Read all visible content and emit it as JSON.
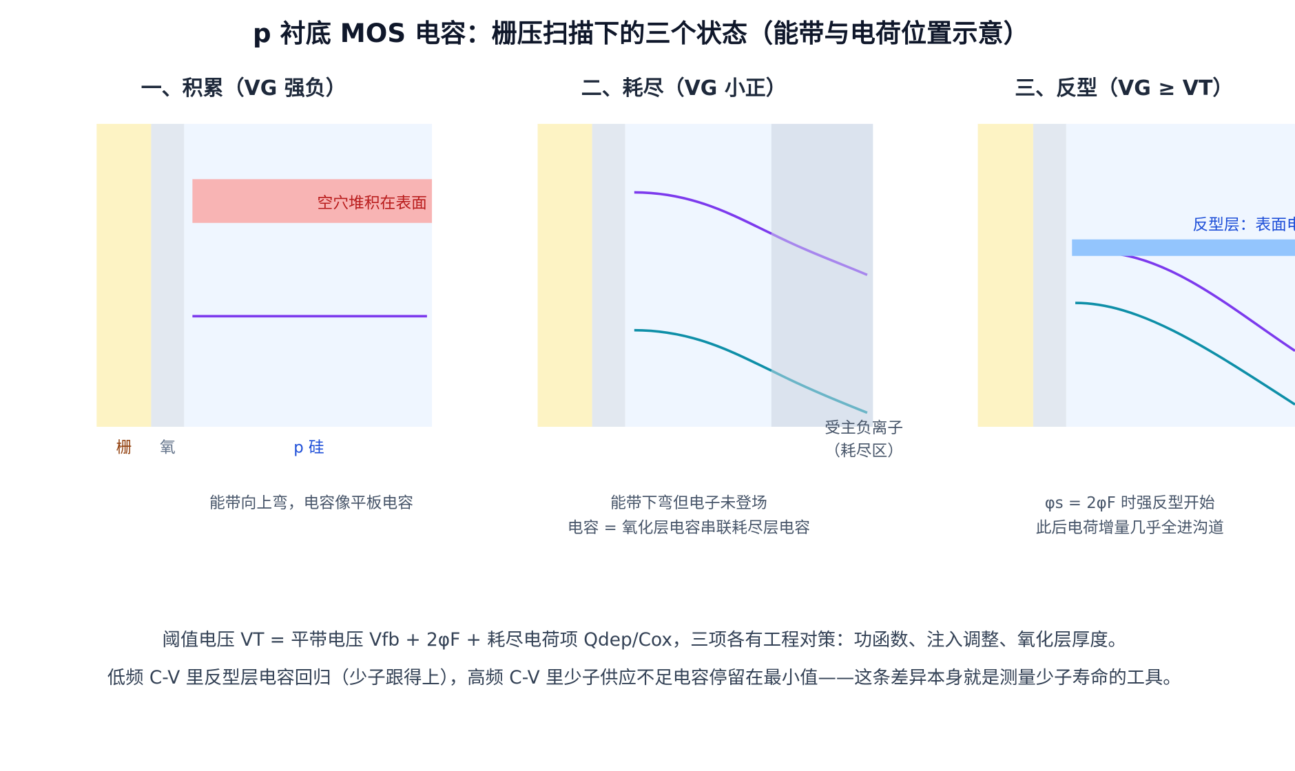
{
  "title": "p 衬底 MOS 电容：栅压扫描下的三个状态（能带与电荷位置示意）",
  "panels": [
    {
      "heading": "一、积累（VG 强负）",
      "annotation": "空穴堆积在表面",
      "labels": [
        "栅",
        "氧",
        "p 硅"
      ],
      "caption": [
        "能带向上弯，电容像平板电容"
      ]
    },
    {
      "heading": "二、耗尽（VG 小正）",
      "annotation": [
        "受主负离子",
        "（耗尽区）"
      ],
      "caption": [
        "能带下弯但电子未登场",
        "电容 = 氧化层电容串联耗尽层电容"
      ]
    },
    {
      "heading": "三、反型（VG ≥ VT）",
      "annotation": "反型层：表面电子",
      "caption": [
        "φs = 2φF 时强反型开始",
        "此后电荷增量几乎全进沟道"
      ]
    }
  ],
  "footer": [
    "阈值电压 VT = 平带电压 Vfb + 2φF + 耗尽电荷项 Qdep/Cox，三项各有工程对策：功函数、注入调整、氧化层厚度。",
    "低频 C-V 里反型层电容回归（少子跟得上），高频 C-V 里少子供应不足电容停留在最小值——这条差异本身就是测量少子寿命的工具。"
  ]
}
